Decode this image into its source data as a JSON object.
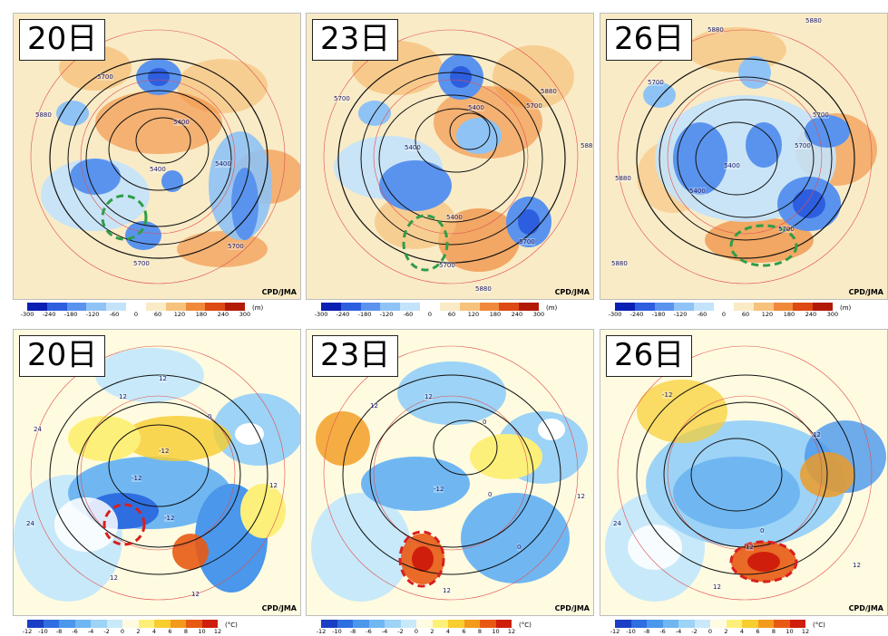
{
  "credit": "CPD/JMA",
  "top_row": {
    "panels": [
      {
        "day": "20日",
        "labels": [
          "5700",
          "5880",
          "5400",
          "5400",
          "5400",
          "5700",
          "5700"
        ]
      },
      {
        "day": "23日",
        "labels": [
          "5700",
          "5400",
          "5880",
          "5400",
          "5700",
          "5400",
          "5700",
          "5700",
          "5880",
          "588"
        ]
      },
      {
        "day": "26日",
        "labels": [
          "5880",
          "5880",
          "5700",
          "5700",
          "5700",
          "5400",
          "5400",
          "5700",
          "5880",
          "5880"
        ]
      }
    ],
    "legend": {
      "ticks": [
        "-300",
        "-240",
        "-180",
        "-120",
        "-60",
        "0",
        "60",
        "120",
        "180",
        "240",
        "300"
      ],
      "unit": "(m)",
      "colors": [
        "#0a1fb3",
        "#2e5ee0",
        "#5a93ee",
        "#8fc3f5",
        "#c3e3fb",
        "#ffffff",
        "#f9ebc6",
        "#f6c27c",
        "#f08a3a",
        "#dd4a14",
        "#b31a06"
      ]
    },
    "highlight_color": "#2e9e48"
  },
  "bottom_row": {
    "panels": [
      {
        "day": "20日",
        "labels": [
          "12",
          "12",
          "-12",
          "24",
          "-12",
          "0",
          "-12",
          "12",
          "12",
          "24",
          "12"
        ]
      },
      {
        "day": "23日",
        "labels": [
          "12",
          "12",
          "0",
          "-12",
          "12",
          "0",
          "0",
          "12"
        ]
      },
      {
        "day": "26日",
        "labels": [
          "-12",
          "0",
          "12",
          "12",
          "24",
          "12",
          "12"
        ]
      }
    ],
    "legend": {
      "ticks": [
        "-12",
        "-10",
        "-8",
        "-6",
        "-4",
        "-2",
        "0",
        "2",
        "4",
        "6",
        "8",
        "10",
        "12"
      ],
      "unit": "(°C)",
      "colors": [
        "#1a3ec4",
        "#2f6ee0",
        "#4a97ec",
        "#70b7f2",
        "#9dd3f6",
        "#c8e9f9",
        "#fffbe0",
        "#fdf07a",
        "#f8cd2e",
        "#f39a1c",
        "#e85a13",
        "#cf1f0c"
      ]
    },
    "highlight_color": "#d81f1f"
  }
}
